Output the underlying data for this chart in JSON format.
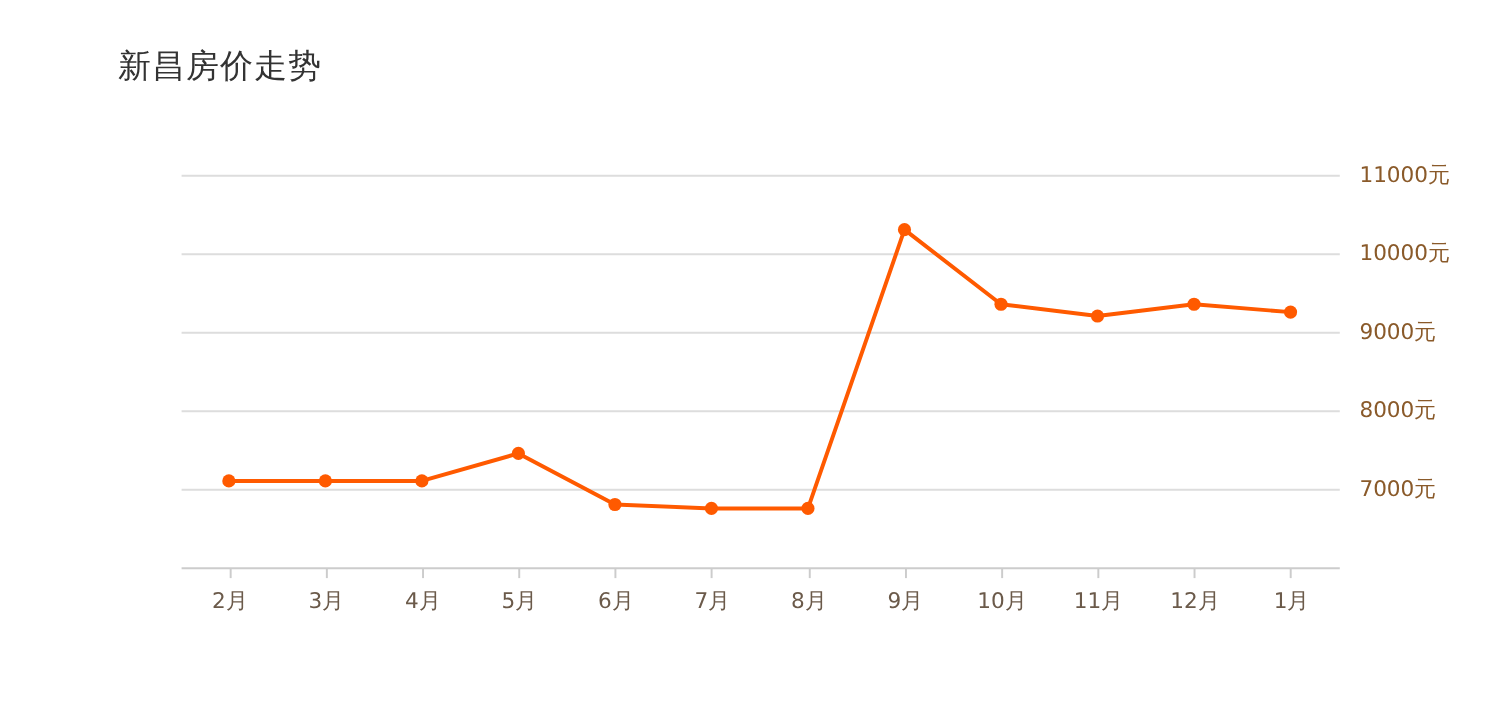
{
  "chart_data": {
    "type": "line",
    "title": "新昌房价走势",
    "categories": [
      "2月",
      "3月",
      "4月",
      "5月",
      "6月",
      "7月",
      "8月",
      "9月",
      "10月",
      "11月",
      "12月",
      "1月"
    ],
    "series": [
      {
        "color": "#ff5a00",
        "values": [
          7100,
          7100,
          7100,
          7450,
          6800,
          6750,
          6750,
          10300,
          9350,
          9200,
          9350,
          9250
        ]
      }
    ],
    "ylim": [
      6000,
      11000
    ],
    "yticks": [
      {
        "value": 7000,
        "label": "7000元"
      },
      {
        "value": 8000,
        "label": "8000元"
      },
      {
        "value": 9000,
        "label": "9000元"
      },
      {
        "value": 10000,
        "label": "10000元"
      },
      {
        "value": 11000,
        "label": "11000元"
      }
    ],
    "grid": "y",
    "marker": "circle",
    "line_style": "solid"
  }
}
